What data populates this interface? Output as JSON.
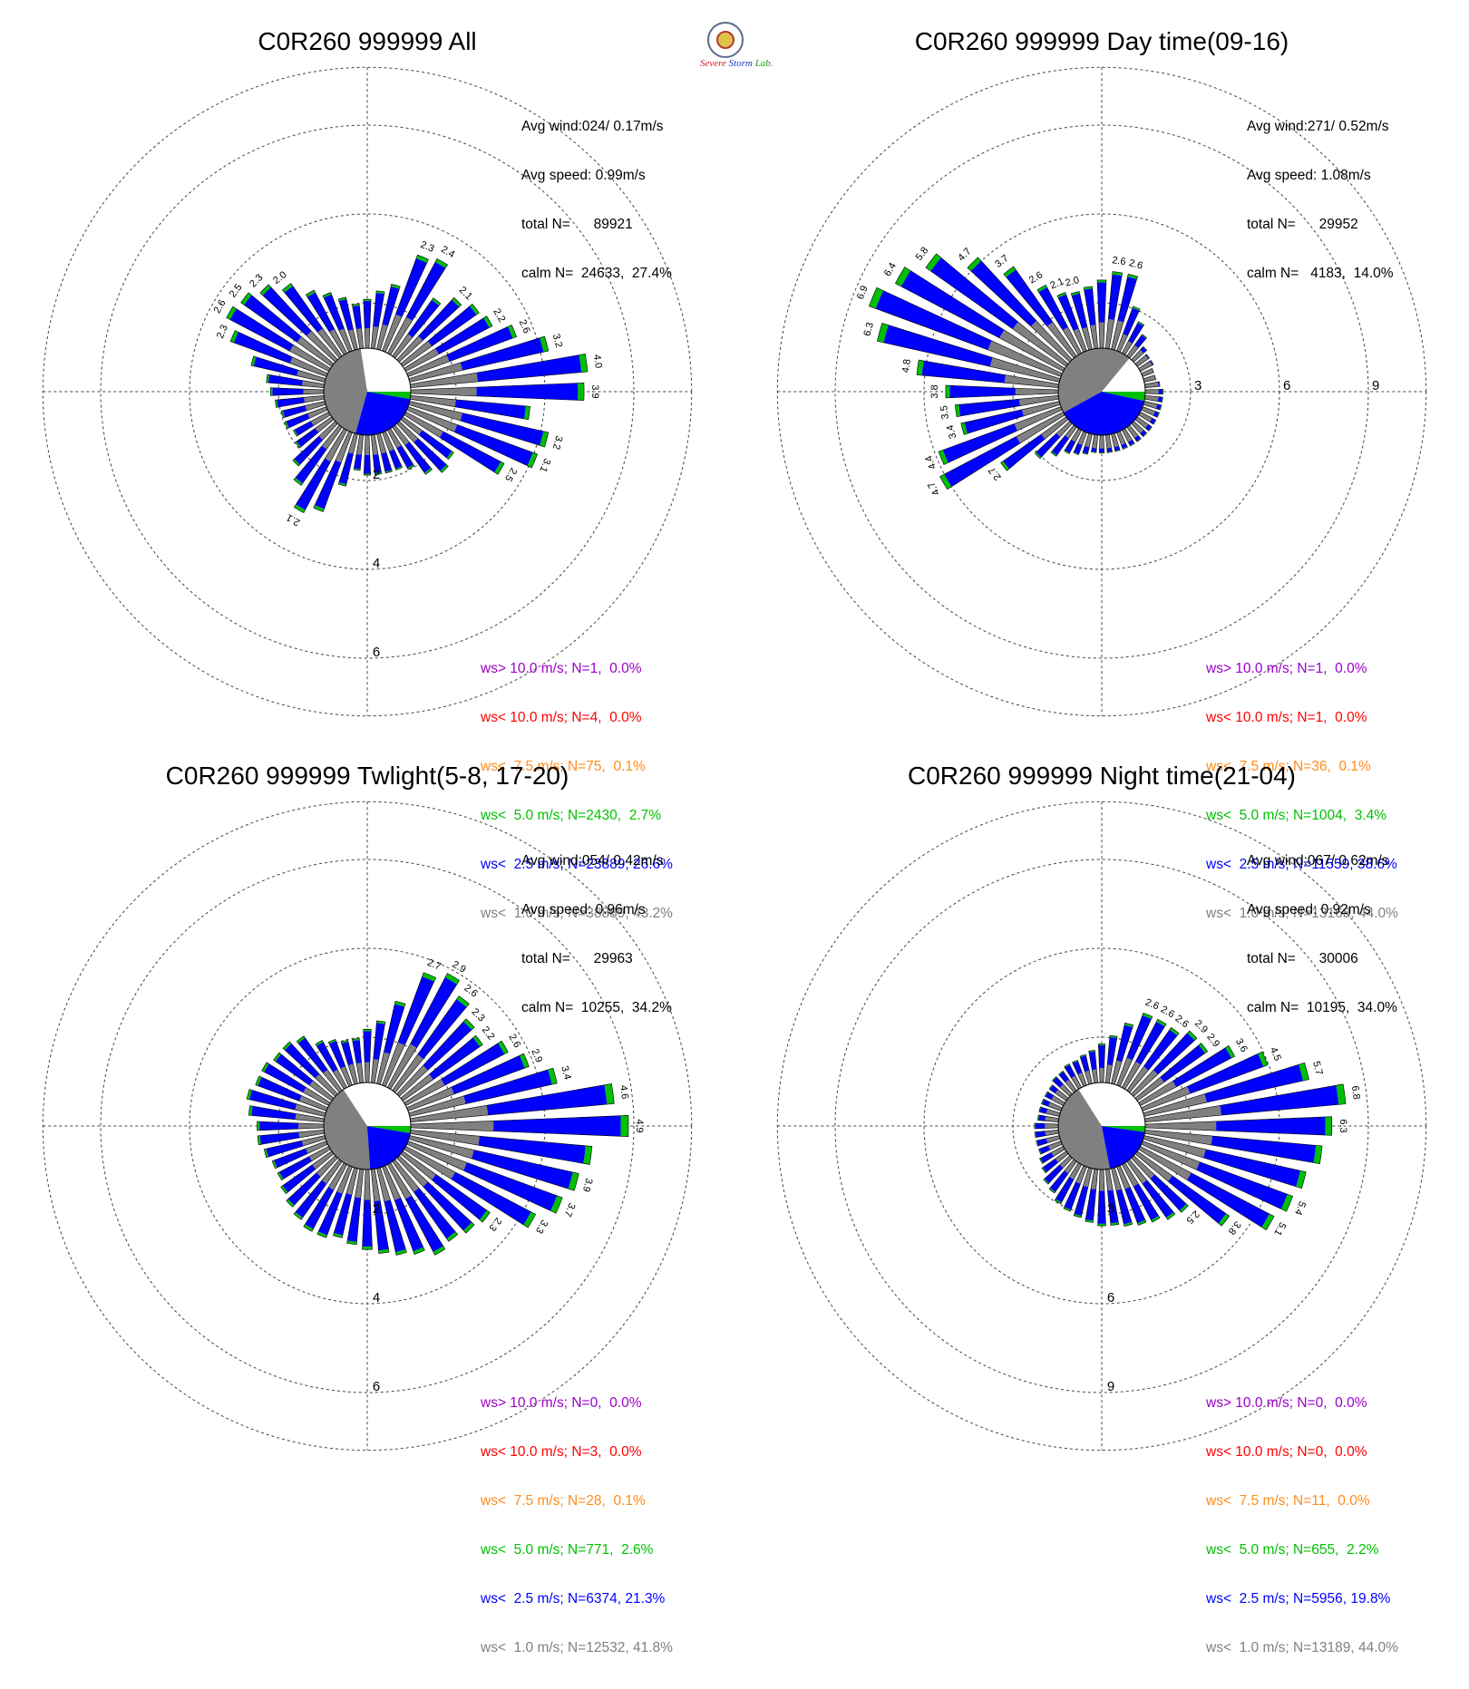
{
  "logo": {
    "text_a": "Severe",
    "text_b": "Storm",
    "text_c": "Lab."
  },
  "colors": {
    "purple": "#9b00c8",
    "red": "#ff0000",
    "orange": "#ff8c1a",
    "green": "#00c000",
    "blue": "#0000ff",
    "gray": "#808080",
    "grid": "#444444"
  },
  "legend_labels": [
    "ws> 10.0 m/s; N=",
    "ws< 10.0 m/s; N=",
    "ws<  7.5 m/s; N=",
    "ws<  5.0 m/s; N=",
    "ws<  2.5 m/s; N=",
    "ws<  1.0 m/s; N="
  ],
  "panels": [
    {
      "title": "C0R260 999999 All",
      "stats": [
        "Avg wind:024/ 0.17m/s",
        "Avg speed: 0.99m/s",
        "total N=      89921",
        "calm N=  24633,  27.4%"
      ],
      "legend": [
        "1,  0.0%",
        "4,  0.0%",
        "75,  0.1%",
        "2430,  2.7%",
        "23889, 26.6%",
        "38889, 43.2%"
      ],
      "ring_labels": [
        "2",
        "4",
        "6"
      ],
      "ring_label_side": "bottom",
      "chart_data": {
        "type": "polar-bar",
        "title": "C0R260 999999 All",
        "r_ticks": [
          2,
          4,
          6
        ],
        "calm_pie_percent": {
          "calm": 27.4,
          "ws<1.0": 43.2,
          "ws<2.5": 26.6,
          "ws<5.0": 2.7
        },
        "totals": [
          3.9,
          4.0,
          3.2,
          2.6,
          2.2,
          2.1,
          1.9,
          1.6,
          2.4,
          2.3,
          1.5,
          1.3,
          1.1,
          1.0,
          1.2,
          1.4,
          1.6,
          2.0,
          2.3,
          2.5,
          2.6,
          2.3,
          1.7,
          1.3,
          1.2,
          1.1,
          1.0,
          1.0,
          0.9,
          1.0,
          1.3,
          1.6,
          2.1,
          1.9,
          1.2,
          0.8,
          0.9,
          0.9,
          0.9,
          0.9,
          1.0,
          1.3,
          1.5,
          1.4,
          2.5,
          3.1,
          3.2,
          2.7
        ],
        "labels": {
          "0": "3.9",
          "1": "4.0",
          "2": "3.2",
          "3": "2.6",
          "4": "2.2",
          "6": "2.1",
          "8": "2.4",
          "9": "2.3",
          "17": "2.0",
          "18": "2.3",
          "19": "2.5",
          "20": "2.6",
          "21": "2.3",
          "32": "2.1",
          "44": "2.5",
          "45": "3.1",
          "46": "3.2"
        }
      }
    },
    {
      "title": "C0R260 999999 Day time(09-16)",
      "stats": [
        "Avg wind:271/ 0.52m/s",
        "Avg speed: 1.08m/s",
        "total N=      29952",
        "calm N=   4183,  14.0%"
      ],
      "legend": [
        "1,  0.0%",
        "1,  0.0%",
        "36,  0.1%",
        "1004,  3.4%",
        "11559, 38.6%",
        "13168, 44.0%"
      ],
      "ring_labels": [
        "3",
        "6",
        "9"
      ],
      "ring_label_side": "right",
      "chart_data": {
        "type": "polar-bar",
        "title": "C0R260 999999 Day time(09-16)",
        "r_ticks": [
          3,
          6,
          9
        ],
        "calm_pie_percent": {
          "calm": 14.0,
          "ws<1.0": 44.0,
          "ws<2.5": 38.6,
          "ws<5.0": 3.4
        },
        "totals": [
          0.6,
          0.5,
          0.4,
          0.4,
          0.5,
          0.5,
          0.6,
          0.9,
          1.2,
          1.6,
          2.6,
          2.6,
          2.3,
          2.1,
          2.0,
          2.1,
          2.6,
          3.7,
          4.7,
          5.8,
          6.4,
          6.9,
          6.3,
          4.8,
          3.8,
          3.5,
          3.4,
          4.4,
          4.7,
          2.7,
          1.6,
          1.2,
          0.9,
          0.8,
          0.7,
          0.6,
          0.6,
          0.6,
          0.6,
          0.6,
          0.6,
          0.6,
          0.6,
          0.6,
          0.6,
          0.6,
          0.6,
          0.6
        ],
        "labels": {
          "10": "2.6",
          "11": "2.6",
          "14": "2.0",
          "15": "2.1",
          "16": "2.6",
          "17": "3.7",
          "18": "4.7",
          "19": "5.8",
          "20": "6.4",
          "21": "6.9",
          "22": "6.3",
          "23": "4.8",
          "24": "3.8",
          "25": "3.5",
          "26": "3.4",
          "27": "4.4",
          "28": "4.7",
          "29": "2.7"
        }
      }
    },
    {
      "title": "C0R260 999999 Twlight(5-8, 17-20)",
      "stats": [
        "Avg wind:054/ 0.42m/s",
        "Avg speed: 0.96m/s",
        "total N=      29963",
        "calm N=  10255,  34.2%"
      ],
      "legend": [
        "0,  0.0%",
        "3,  0.0%",
        "28,  0.1%",
        "771,  2.6%",
        "6374, 21.3%",
        "12532, 41.8%"
      ],
      "ring_labels": [
        "2",
        "4",
        "6"
      ],
      "ring_label_side": "bottom",
      "chart_data": {
        "type": "polar-bar",
        "title": "C0R260 999999 Twlight(5-8, 17-20)",
        "r_ticks": [
          2,
          4,
          6
        ],
        "calm_pie_percent": {
          "calm": 34.2,
          "ws<1.0": 41.8,
          "ws<2.5": 21.3,
          "ws<5.0": 2.6
        },
        "totals": [
          4.9,
          4.6,
          3.4,
          2.9,
          2.6,
          2.2,
          2.3,
          2.6,
          2.9,
          2.7,
          1.9,
          1.4,
          1.2,
          1.0,
          1.0,
          1.1,
          1.2,
          1.5,
          1.6,
          1.6,
          1.7,
          1.7,
          1.8,
          1.7,
          1.5,
          1.5,
          1.4,
          1.3,
          1.3,
          1.4,
          1.5,
          1.6,
          1.7,
          1.7,
          1.6,
          1.7,
          1.8,
          1.9,
          2.0,
          2.1,
          2.3,
          2.2,
          2.3,
          2.4,
          3.3,
          3.7,
          3.9,
          4.1
        ],
        "labels": {
          "0": "4.9",
          "1": "4.6",
          "2": "3.4",
          "3": "2.9",
          "4": "2.6",
          "5": "2.2",
          "6": "2.3",
          "7": "2.6",
          "8": "2.9",
          "9": "2.7",
          "43": "2.3",
          "44": "3.3",
          "45": "3.7",
          "46": "3.9"
        }
      }
    },
    {
      "title": "C0R260 999999 Night time(21-04)",
      "stats": [
        "Avg wind:067/ 0.62m/s",
        "Avg speed: 0.92m/s",
        "total N=      30006",
        "calm N=  10195,  34.0%"
      ],
      "legend": [
        "0,  0.0%",
        "0,  0.0%",
        "11,  0.0%",
        "655,  2.2%",
        "5956, 19.8%",
        "13189, 44.0%"
      ],
      "ring_labels": [
        "3",
        "6",
        "9"
      ],
      "ring_label_side": "bottom",
      "chart_data": {
        "type": "polar-bar",
        "title": "C0R260 999999 Night time(21-04)",
        "r_ticks": [
          3,
          6,
          9
        ],
        "calm_pie_percent": {
          "calm": 34.0,
          "ws<1.0": 44.0,
          "ws<2.5": 19.8,
          "ws<5.0": 2.2
        },
        "totals": [
          6.3,
          6.8,
          5.7,
          4.5,
          3.6,
          2.9,
          2.9,
          2.6,
          2.6,
          2.6,
          2.1,
          1.6,
          1.3,
          1.1,
          1.0,
          0.9,
          0.9,
          0.8,
          0.8,
          0.7,
          0.7,
          0.7,
          0.7,
          0.7,
          0.8,
          0.8,
          0.8,
          0.8,
          0.9,
          1.0,
          1.2,
          1.3,
          1.5,
          1.6,
          1.7,
          1.8,
          1.9,
          1.9,
          2.0,
          2.1,
          2.2,
          2.4,
          2.5,
          3.8,
          5.1,
          5.4,
          5.6,
          6.0
        ],
        "labels": {
          "0": "6.3",
          "1": "6.8",
          "2": "5.7",
          "3": "4.5",
          "4": "3.6",
          "5": "2.9",
          "6": "2.9",
          "7": "2.6",
          "8": "2.6",
          "9": "2.6",
          "42": "2.5",
          "43": "3.8",
          "44": "5.1",
          "45": "5.4"
        }
      }
    }
  ]
}
